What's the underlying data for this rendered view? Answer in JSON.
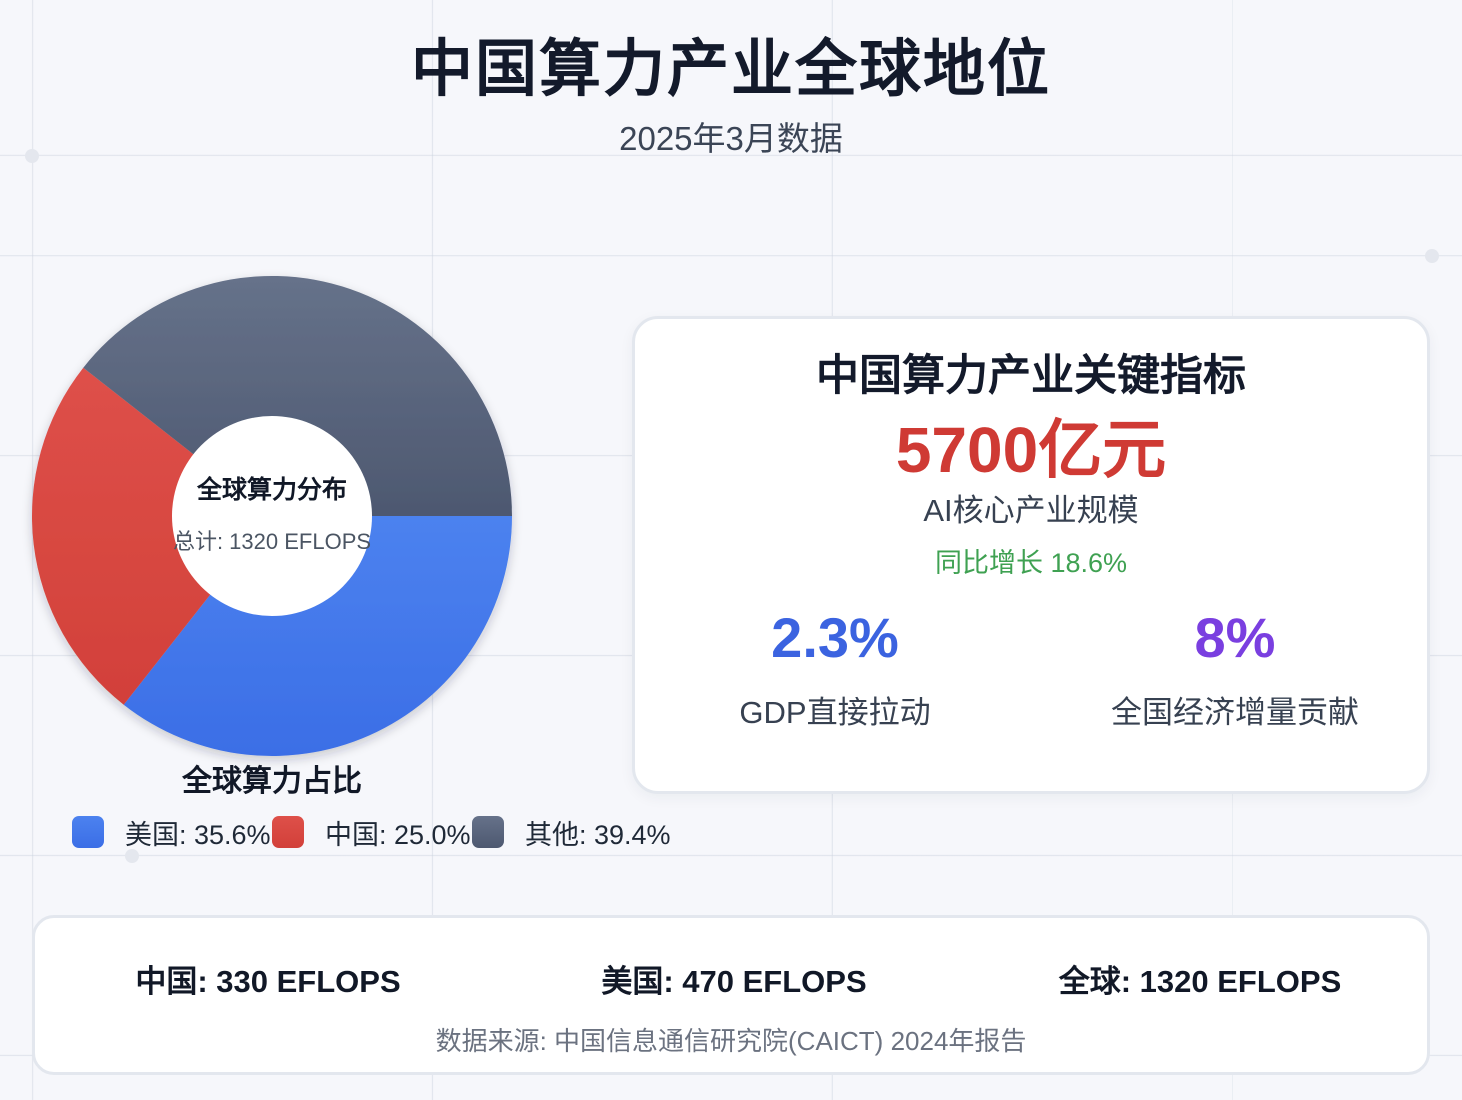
{
  "header": {
    "title": "中国算力产业全球地位",
    "subtitle": "2025年3月数据"
  },
  "chart_data": {
    "type": "pie",
    "title": "全球算力占比",
    "center_title": "全球算力分布",
    "center_total": "总计: 1320 EFLOPS",
    "slices": [
      {
        "name": "美国",
        "value": 35.6,
        "label": "美国: 35.6%",
        "color": "#3b6ee6",
        "color_light": "#4c82ef"
      },
      {
        "name": "中国",
        "value": 25.0,
        "label": "中国: 25.0%",
        "color": "#d2403a",
        "color_light": "#de5049"
      },
      {
        "name": "其他",
        "value": 39.4,
        "label": "其他: 39.4%",
        "color": "#4d5870",
        "color_light": "#66728a"
      }
    ],
    "legend_position": "bottom"
  },
  "kpi": {
    "heading": "中国算力产业关键指标",
    "main_value": "5700亿元",
    "main_label": "AI核心产业规模",
    "growth": "同比增长 18.6%",
    "sub": [
      {
        "value": "2.3%",
        "label": "GDP直接拉动",
        "color": "#3b63e0"
      },
      {
        "value": "8%",
        "label": "全国经济增量贡献",
        "color": "#7a3fe0"
      }
    ]
  },
  "footer": {
    "stats": [
      "中国: 330 EFLOPS",
      "美国: 470 EFLOPS",
      "全球: 1320 EFLOPS"
    ],
    "source": "数据来源: 中国信息通信研究院(CAICT) 2024年报告"
  }
}
